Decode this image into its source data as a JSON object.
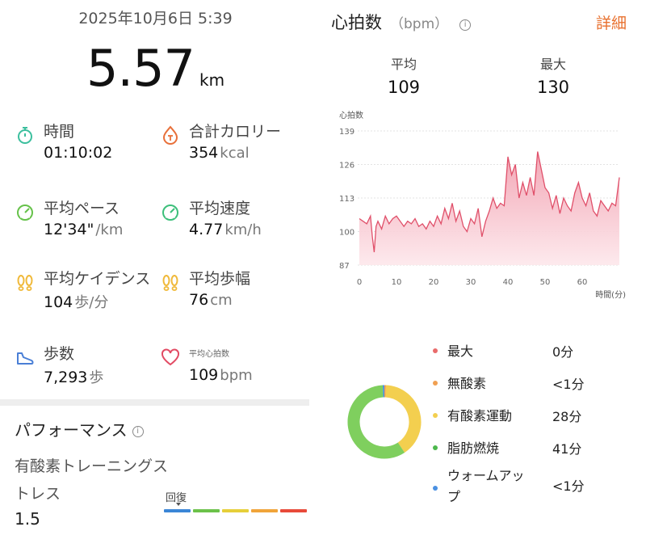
{
  "workout": {
    "datetime": "2025年10月6日 5:39",
    "distance": "5.57",
    "distance_unit": "km"
  },
  "metrics": [
    {
      "label": "時間",
      "value": "01:10:02",
      "unit": "",
      "icon": "stopwatch-icon",
      "color": "#3cbf9e"
    },
    {
      "label": "合計カロリー",
      "value": "354",
      "unit": "kcal",
      "icon": "calorie-icon",
      "color": "#e8703a"
    },
    {
      "label": "平均ペース",
      "value": "12'34\"",
      "unit": "/km",
      "icon": "pace-gauge-icon",
      "color": "#66c24a"
    },
    {
      "label": "平均速度",
      "value": "4.77",
      "unit": "km/h",
      "icon": "speed-gauge-icon",
      "color": "#3cbf7a"
    },
    {
      "label": "平均ケイデンス",
      "value": "104",
      "unit": "歩/分",
      "icon": "footprints-icon",
      "color": "#f0b93a"
    },
    {
      "label": "平均歩幅",
      "value": "76",
      "unit": "cm",
      "icon": "footprints-icon",
      "color": "#f0b93a"
    },
    {
      "label": "歩数",
      "value": "7,293",
      "unit": "歩",
      "icon": "shoe-icon",
      "color": "#4a7fd6"
    },
    {
      "label": "平均心拍数",
      "value": "109",
      "unit": "bpm",
      "icon": "heart-icon",
      "color": "#e24a63"
    }
  ],
  "performance": {
    "title": "パフォーマンス",
    "stress_label": "有酸素トレーニングストレス",
    "stress_value": "1.5",
    "recovery_label": "回復",
    "scale_colors": [
      "#3b86d6",
      "#6cc24a",
      "#e6cf3a",
      "#f0a43a",
      "#e84a3a"
    ]
  },
  "heart_rate": {
    "title": "心拍数",
    "unit_label": "（bpm）",
    "detail_link": "詳細",
    "avg_label": "平均",
    "avg_value": "109",
    "max_label": "最大",
    "max_value": "130"
  },
  "chart_data": {
    "type": "area",
    "ylabel": "心拍数",
    "xlabel": "時間(分)",
    "xlim": [
      0,
      70
    ],
    "ylim": [
      87,
      139
    ],
    "x_ticks": [
      0,
      10,
      20,
      30,
      40,
      50,
      60
    ],
    "y_ticks": [
      87,
      100,
      113,
      126,
      139
    ],
    "color": "#e0506a",
    "fill": "#f8c7d0",
    "series": [
      {
        "values": [
          [
            0,
            105
          ],
          [
            1,
            104
          ],
          [
            2,
            103
          ],
          [
            3,
            106
          ],
          [
            3.5,
            98
          ],
          [
            4,
            92
          ],
          [
            4.5,
            102
          ],
          [
            5,
            104
          ],
          [
            6,
            101
          ],
          [
            7,
            106
          ],
          [
            8,
            103
          ],
          [
            9,
            105
          ],
          [
            10,
            106
          ],
          [
            11,
            104
          ],
          [
            12,
            102
          ],
          [
            13,
            104
          ],
          [
            14,
            103
          ],
          [
            15,
            105
          ],
          [
            16,
            102
          ],
          [
            17,
            103
          ],
          [
            18,
            101
          ],
          [
            19,
            104
          ],
          [
            20,
            102
          ],
          [
            21,
            106
          ],
          [
            22,
            103
          ],
          [
            23,
            109
          ],
          [
            24,
            105
          ],
          [
            25,
            111
          ],
          [
            26,
            104
          ],
          [
            27,
            108
          ],
          [
            28,
            102
          ],
          [
            29,
            100
          ],
          [
            30,
            105
          ],
          [
            31,
            103
          ],
          [
            32,
            109
          ],
          [
            33,
            98
          ],
          [
            34,
            104
          ],
          [
            35,
            108
          ],
          [
            36,
            113
          ],
          [
            37,
            109
          ],
          [
            38,
            111
          ],
          [
            39,
            110
          ],
          [
            40,
            129
          ],
          [
            41,
            122
          ],
          [
            42,
            126
          ],
          [
            43,
            113
          ],
          [
            44,
            119
          ],
          [
            45,
            114
          ],
          [
            46,
            121
          ],
          [
            47,
            114
          ],
          [
            48,
            131
          ],
          [
            49,
            124
          ],
          [
            50,
            117
          ],
          [
            51,
            115
          ],
          [
            52,
            109
          ],
          [
            53,
            114
          ],
          [
            54,
            107
          ],
          [
            55,
            113
          ],
          [
            56,
            110
          ],
          [
            57,
            108
          ],
          [
            58,
            115
          ],
          [
            59,
            119
          ],
          [
            60,
            113
          ],
          [
            61,
            110
          ],
          [
            62,
            115
          ],
          [
            63,
            108
          ],
          [
            64,
            106
          ],
          [
            65,
            112
          ],
          [
            66,
            110
          ],
          [
            67,
            108
          ],
          [
            68,
            111
          ],
          [
            69,
            110
          ],
          [
            70,
            121
          ]
        ]
      }
    ]
  },
  "zones_chart": {
    "type": "pie",
    "categories": [
      "最大",
      "無酸素",
      "有酸素運動",
      "脂肪燃焼",
      "ウォームアップ"
    ],
    "values": [
      0,
      0.5,
      28,
      41,
      0.5
    ],
    "colors": [
      "#e96b6b",
      "#f0a052",
      "#f3cf4f",
      "#7fcf5e",
      "#4a90e2"
    ]
  },
  "zones": [
    {
      "name": "最大",
      "time": "0分",
      "color": "#e96b6b"
    },
    {
      "name": "無酸素",
      "time": "<1分",
      "color": "#f0a052"
    },
    {
      "name": "有酸素運動",
      "time": "28分",
      "color": "#f3cf4f"
    },
    {
      "name": "脂肪燃焼",
      "time": "41分",
      "color": "#4cb84c"
    },
    {
      "name": "ウォームアップ",
      "time": "<1分",
      "color": "#4a90e2"
    }
  ]
}
